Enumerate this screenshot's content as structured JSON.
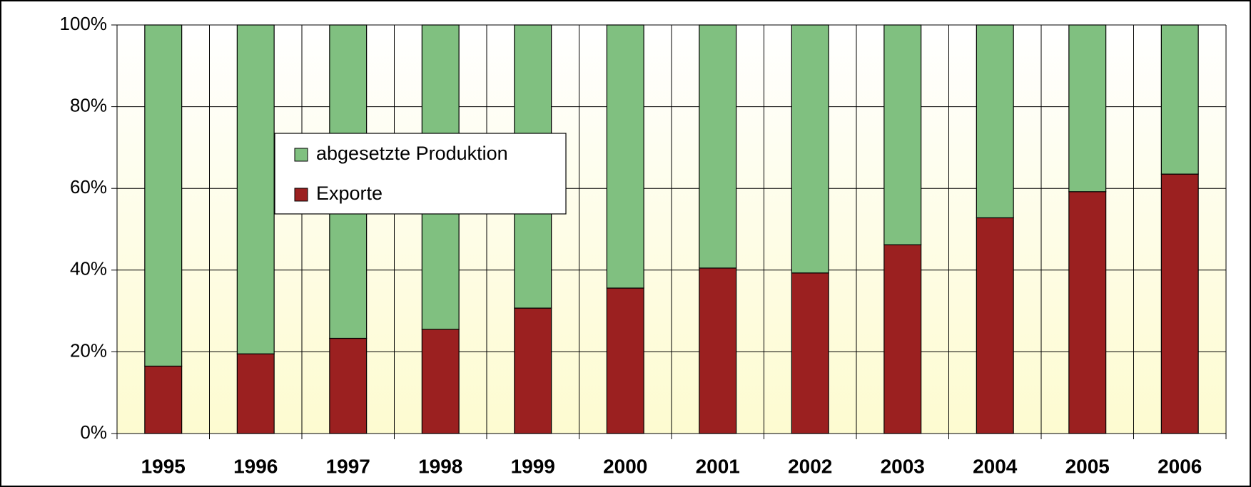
{
  "chart_data": {
    "type": "bar",
    "stacked": true,
    "categories": [
      "1995",
      "1996",
      "1997",
      "1998",
      "1999",
      "2000",
      "2001",
      "2002",
      "2003",
      "2004",
      "2005",
      "2006"
    ],
    "series": [
      {
        "name": "Exporte",
        "color": "#9b2020",
        "values": [
          16.5,
          19.5,
          23.3,
          25.5,
          30.7,
          35.6,
          40.5,
          39.3,
          46.2,
          52.8,
          59.2,
          63.5
        ]
      },
      {
        "name": "abgesetzte Produktion",
        "color": "#80c080",
        "values": [
          83.5,
          80.5,
          76.7,
          74.5,
          69.3,
          64.4,
          59.5,
          60.7,
          53.8,
          47.2,
          40.8,
          36.5
        ]
      }
    ],
    "ylim": [
      0,
      100
    ],
    "yticks": [
      {
        "value": 0,
        "label": "0%"
      },
      {
        "value": 20,
        "label": "20%"
      },
      {
        "value": 40,
        "label": "40%"
      },
      {
        "value": 60,
        "label": "60%"
      },
      {
        "value": 80,
        "label": "80%"
      },
      {
        "value": 100,
        "label": "100%"
      }
    ],
    "grid": true,
    "legend": "upper left"
  }
}
